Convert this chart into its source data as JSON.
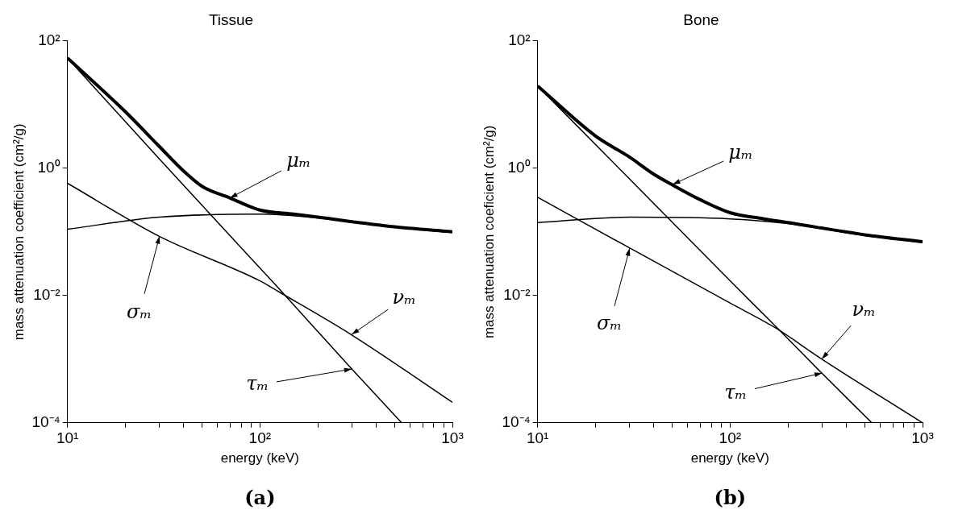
{
  "chart_data": [
    {
      "type": "line",
      "title": "Tissue",
      "xlabel": "energy (keV)",
      "ylabel": "mass attenuation coefficient (cm²/g)",
      "log": "xy",
      "grid": false,
      "legend": false,
      "marker": "none",
      "line_style": "solid",
      "xlim": [
        10,
        1000
      ],
      "xticks": [
        {
          "value": 10,
          "label": "10¹"
        },
        {
          "value": 20,
          "label": null
        },
        {
          "value": 30,
          "label": null
        },
        {
          "value": 40,
          "label": null
        },
        {
          "value": 50,
          "label": null
        },
        {
          "value": 60,
          "label": null
        },
        {
          "value": 70,
          "label": null
        },
        {
          "value": 80,
          "label": null
        },
        {
          "value": 90,
          "label": null
        },
        {
          "value": 100,
          "label": "10²"
        },
        {
          "value": 200,
          "label": null
        },
        {
          "value": 300,
          "label": null
        },
        {
          "value": 400,
          "label": null
        },
        {
          "value": 500,
          "label": null
        },
        {
          "value": 600,
          "label": null
        },
        {
          "value": 700,
          "label": null
        },
        {
          "value": 800,
          "label": null
        },
        {
          "value": 900,
          "label": null
        },
        {
          "value": 1000,
          "label": "10³"
        }
      ],
      "ylim": [
        0.0001,
        100
      ],
      "yticks": [
        {
          "value": 0.0001,
          "label": "10⁻⁴"
        },
        {
          "value": 0.01,
          "label": "10⁻²"
        },
        {
          "value": 1,
          "label": "10⁰"
        },
        {
          "value": 100,
          "label": "10²"
        }
      ],
      "series": [
        {
          "color": "#000000",
          "x": [
            10,
            20,
            30,
            40,
            50,
            70,
            100,
            150,
            200,
            500,
            1000
          ],
          "values": [
            54,
            7.7,
            2.2,
            0.91,
            0.52,
            0.34,
            0.22,
            0.19,
            0.17,
            0.12,
            0.1
          ]
        },
        {
          "color": "#000000",
          "x": [
            10,
            30,
            100,
            125,
            300,
            545
          ],
          "values": [
            54,
            1.4,
            0.027,
            0.013,
            0.0007,
            0.0001
          ]
        },
        {
          "color": "#000000",
          "x": [
            10,
            30,
            100,
            125,
            300,
            1000
          ],
          "values": [
            0.58,
            0.085,
            0.017,
            0.0115,
            0.0024,
            0.00021
          ]
        },
        {
          "color": "#000000",
          "x": [
            10,
            30,
            100,
            200,
            500,
            1000
          ],
          "values": [
            0.11,
            0.17,
            0.19,
            0.165,
            0.118,
            0.098
          ]
        }
      ],
      "annotations": [
        {
          "text": "μₘ",
          "x": 70,
          "y": 0.34
        },
        {
          "text": "τₘ",
          "x": 300,
          "y": 0.0007
        },
        {
          "text": "νₘ",
          "x": 300,
          "y": 0.0024
        },
        {
          "text": "σₘ",
          "x": 30,
          "y": 0.085
        },
        "(a)"
      ]
    },
    {
      "type": "line",
      "title": "Bone",
      "xlabel": "energy (keV)",
      "ylabel": "mass attenuation coeficient (cm²/g)",
      "log": "xy",
      "grid": false,
      "legend": false,
      "marker": "none",
      "line_style": "solid",
      "xlim": [
        10,
        1000
      ],
      "xticks": [
        {
          "value": 10,
          "label": "10¹"
        },
        {
          "value": 20,
          "label": null
        },
        {
          "value": 30,
          "label": null
        },
        {
          "value": 40,
          "label": null
        },
        {
          "value": 50,
          "label": null
        },
        {
          "value": 60,
          "label": null
        },
        {
          "value": 70,
          "label": null
        },
        {
          "value": 80,
          "label": null
        },
        {
          "value": 90,
          "label": null
        },
        {
          "value": 100,
          "label": "10²"
        },
        {
          "value": 200,
          "label": null
        },
        {
          "value": 300,
          "label": null
        },
        {
          "value": 400,
          "label": null
        },
        {
          "value": 500,
          "label": null
        },
        {
          "value": 600,
          "label": null
        },
        {
          "value": 700,
          "label": null
        },
        {
          "value": 800,
          "label": null
        },
        {
          "value": 900,
          "label": null
        },
        {
          "value": 1000,
          "label": "10³"
        }
      ],
      "ylim": [
        0.0001,
        100
      ],
      "yticks": [
        {
          "value": 0.0001,
          "label": "10⁻⁴"
        },
        {
          "value": 0.01,
          "label": "10⁻²"
        },
        {
          "value": 1,
          "label": "10⁰"
        },
        {
          "value": 100,
          "label": "10²"
        }
      ],
      "series": [
        {
          "color": "#000000",
          "x": [
            10,
            20,
            30,
            40,
            50,
            70,
            100,
            150,
            200,
            500,
            1000
          ],
          "values": [
            19.6,
            3.2,
            1.5,
            0.81,
            0.55,
            0.32,
            0.2,
            0.16,
            0.14,
            0.09,
            0.07
          ]
        },
        {
          "color": "#000000",
          "x": [
            10,
            30,
            100,
            172,
            300,
            545
          ],
          "values": [
            19.6,
            0.68,
            0.017,
            0.0033,
            0.0006,
            0.0001
          ]
        },
        {
          "color": "#000000",
          "x": [
            10,
            30,
            100,
            172,
            300,
            1000
          ],
          "values": [
            0.35,
            0.056,
            0.0076,
            0.0031,
            0.001,
            0.0001
          ]
        },
        {
          "color": "#000000",
          "x": [
            10,
            30,
            100,
            200,
            500,
            1000
          ],
          "values": [
            0.14,
            0.17,
            0.16,
            0.135,
            0.088,
            0.068
          ]
        }
      ],
      "annotations": [
        {
          "text": "μₘ",
          "x": 50,
          "y": 0.55
        },
        {
          "text": "τₘ",
          "x": 300,
          "y": 0.0006
        },
        {
          "text": "νₘ",
          "x": 300,
          "y": 0.001
        },
        {
          "text": "σₘ",
          "x": 30,
          "y": 0.056
        },
        "(b)"
      ]
    }
  ]
}
